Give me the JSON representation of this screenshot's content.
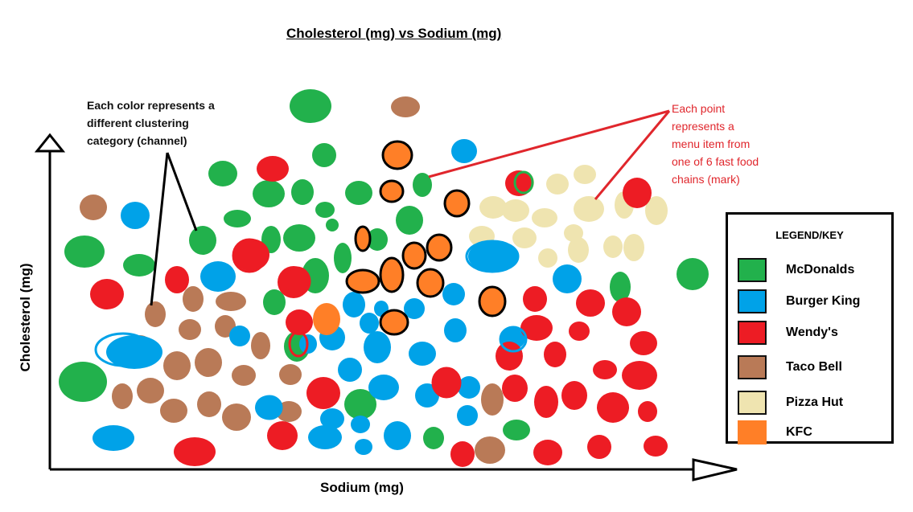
{
  "chart_data": {
    "type": "scatter",
    "title": "Cholesterol (mg) vs Sodium (mg)",
    "xlabel": "Sodium (mg)",
    "ylabel": "Cholesterol (mg)",
    "grid": false,
    "legend_position": "right",
    "legend_title": "LEGEND/KEY",
    "series": [
      {
        "name": "McDonalds",
        "color": "#22b14c"
      },
      {
        "name": "Burger King",
        "color": "#00a2e8"
      },
      {
        "name": "Wendy's",
        "color": "#ed1c24"
      },
      {
        "name": "Taco Bell",
        "color": "#b97a57"
      },
      {
        "name": "Pizza Hut",
        "color": "#efe4b0"
      },
      {
        "name": "KFC",
        "color": "#ff7f27"
      }
    ]
  },
  "annotations": {
    "channel_note": "Each color represents a\ndifferent clustering\ncategory (channel)",
    "mark_note": "Each point\nrepresents a\nmenu item from\none of 6 fast food\nchains (mark)"
  }
}
